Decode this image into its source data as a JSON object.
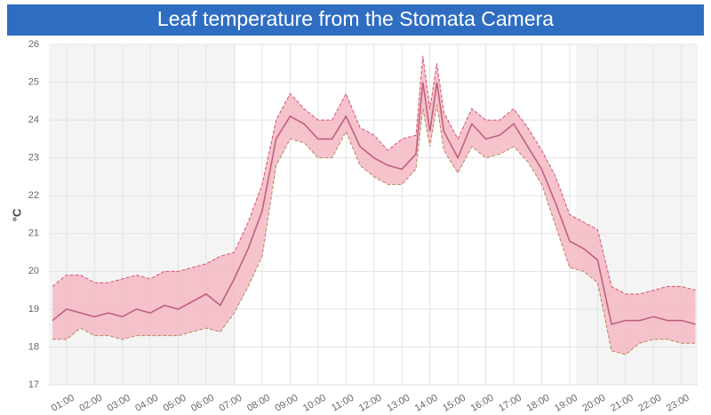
{
  "chart_data": {
    "type": "line",
    "title": "Leaf temperature from the Stomata Camera",
    "y_label": "°C",
    "x": [
      0.5,
      1,
      1.5,
      2,
      2.5,
      3,
      3.5,
      4,
      4.5,
      5,
      5.5,
      6,
      6.5,
      7,
      7.5,
      8,
      8.5,
      9,
      9.5,
      10,
      10.5,
      11,
      11.5,
      12,
      12.5,
      13,
      13.5,
      13.75,
      14,
      14.25,
      14.5,
      15,
      15.5,
      16,
      16.5,
      17,
      17.5,
      18,
      18.5,
      19,
      19.5,
      20,
      20.5,
      21,
      21.5,
      22,
      22.5,
      23,
      23.5
    ],
    "values": [
      18.7,
      19.0,
      18.9,
      18.8,
      18.9,
      18.8,
      19.0,
      18.9,
      19.1,
      19.0,
      19.2,
      19.4,
      19.1,
      19.8,
      20.6,
      21.6,
      23.5,
      24.1,
      23.9,
      23.5,
      23.5,
      24.1,
      23.3,
      23.0,
      22.8,
      22.7,
      23.1,
      25.0,
      23.7,
      25.0,
      23.7,
      23.0,
      23.9,
      23.5,
      23.6,
      23.9,
      23.3,
      22.7,
      21.8,
      20.8,
      20.6,
      20.3,
      18.6,
      18.7,
      18.7,
      18.8,
      18.7,
      18.7,
      18.6
    ],
    "lower": [
      18.2,
      18.2,
      18.5,
      18.3,
      18.3,
      18.2,
      18.3,
      18.3,
      18.3,
      18.3,
      18.4,
      18.5,
      18.4,
      18.9,
      19.6,
      20.4,
      22.8,
      23.5,
      23.4,
      23.0,
      23.0,
      23.7,
      22.8,
      22.5,
      22.3,
      22.3,
      22.7,
      24.3,
      23.3,
      24.4,
      23.2,
      22.6,
      23.3,
      23.0,
      23.1,
      23.3,
      22.9,
      22.3,
      21.2,
      20.1,
      20.0,
      19.7,
      17.9,
      17.8,
      18.1,
      18.2,
      18.2,
      18.1,
      18.1
    ],
    "upper": [
      19.6,
      19.9,
      19.9,
      19.7,
      19.7,
      19.8,
      19.9,
      19.8,
      20.0,
      20.0,
      20.1,
      20.2,
      20.4,
      20.5,
      21.3,
      22.3,
      24.0,
      24.7,
      24.3,
      24.0,
      24.0,
      24.7,
      23.8,
      23.6,
      23.2,
      23.5,
      23.6,
      25.7,
      24.3,
      25.5,
      24.2,
      23.5,
      24.3,
      24.0,
      24.0,
      24.3,
      23.8,
      23.2,
      22.5,
      21.5,
      21.3,
      21.1,
      19.6,
      19.4,
      19.4,
      19.5,
      19.6,
      19.6,
      19.5
    ],
    "color": "#c0607e",
    "band_color": "#f4b8c4",
    "upper_color": "#d9506c",
    "lower_color": "#b5885a",
    "shaded_ranges": [
      [
        0.37,
        7.04
      ],
      [
        19.22,
        23.58
      ]
    ],
    "shade_color": "#f4f4f4",
    "xlim": [
      0.37,
      23.58
    ],
    "ylim": [
      17,
      26
    ],
    "yticks": [
      17,
      18,
      19,
      20,
      21,
      22,
      23,
      24,
      25,
      26
    ],
    "xticks": [
      {
        "value": 1,
        "label": "01:00"
      },
      {
        "value": 2,
        "label": "02:00"
      },
      {
        "value": 3,
        "label": "03:00"
      },
      {
        "value": 4,
        "label": "04:00"
      },
      {
        "value": 5,
        "label": "05:00"
      },
      {
        "value": 6,
        "label": "06:00"
      },
      {
        "value": 7,
        "label": "07:00"
      },
      {
        "value": 8,
        "label": "08:00"
      },
      {
        "value": 9,
        "label": "09:00"
      },
      {
        "value": 10,
        "label": "10:00"
      },
      {
        "value": 11,
        "label": "11:00"
      },
      {
        "value": 12,
        "label": "12:00"
      },
      {
        "value": 13,
        "label": "13:00"
      },
      {
        "value": 14,
        "label": "14:00"
      },
      {
        "value": 15,
        "label": "15:00"
      },
      {
        "value": 16,
        "label": "16:00"
      },
      {
        "value": 17,
        "label": "17:00"
      },
      {
        "value": 18,
        "label": "18:00"
      },
      {
        "value": 19,
        "label": "19:00"
      },
      {
        "value": 20,
        "label": "20:00"
      },
      {
        "value": 21,
        "label": "21:00"
      },
      {
        "value": 22,
        "label": "22:00"
      },
      {
        "value": 23,
        "label": "23:00"
      }
    ],
    "grid": true,
    "title_color": "#2f6dc2"
  }
}
